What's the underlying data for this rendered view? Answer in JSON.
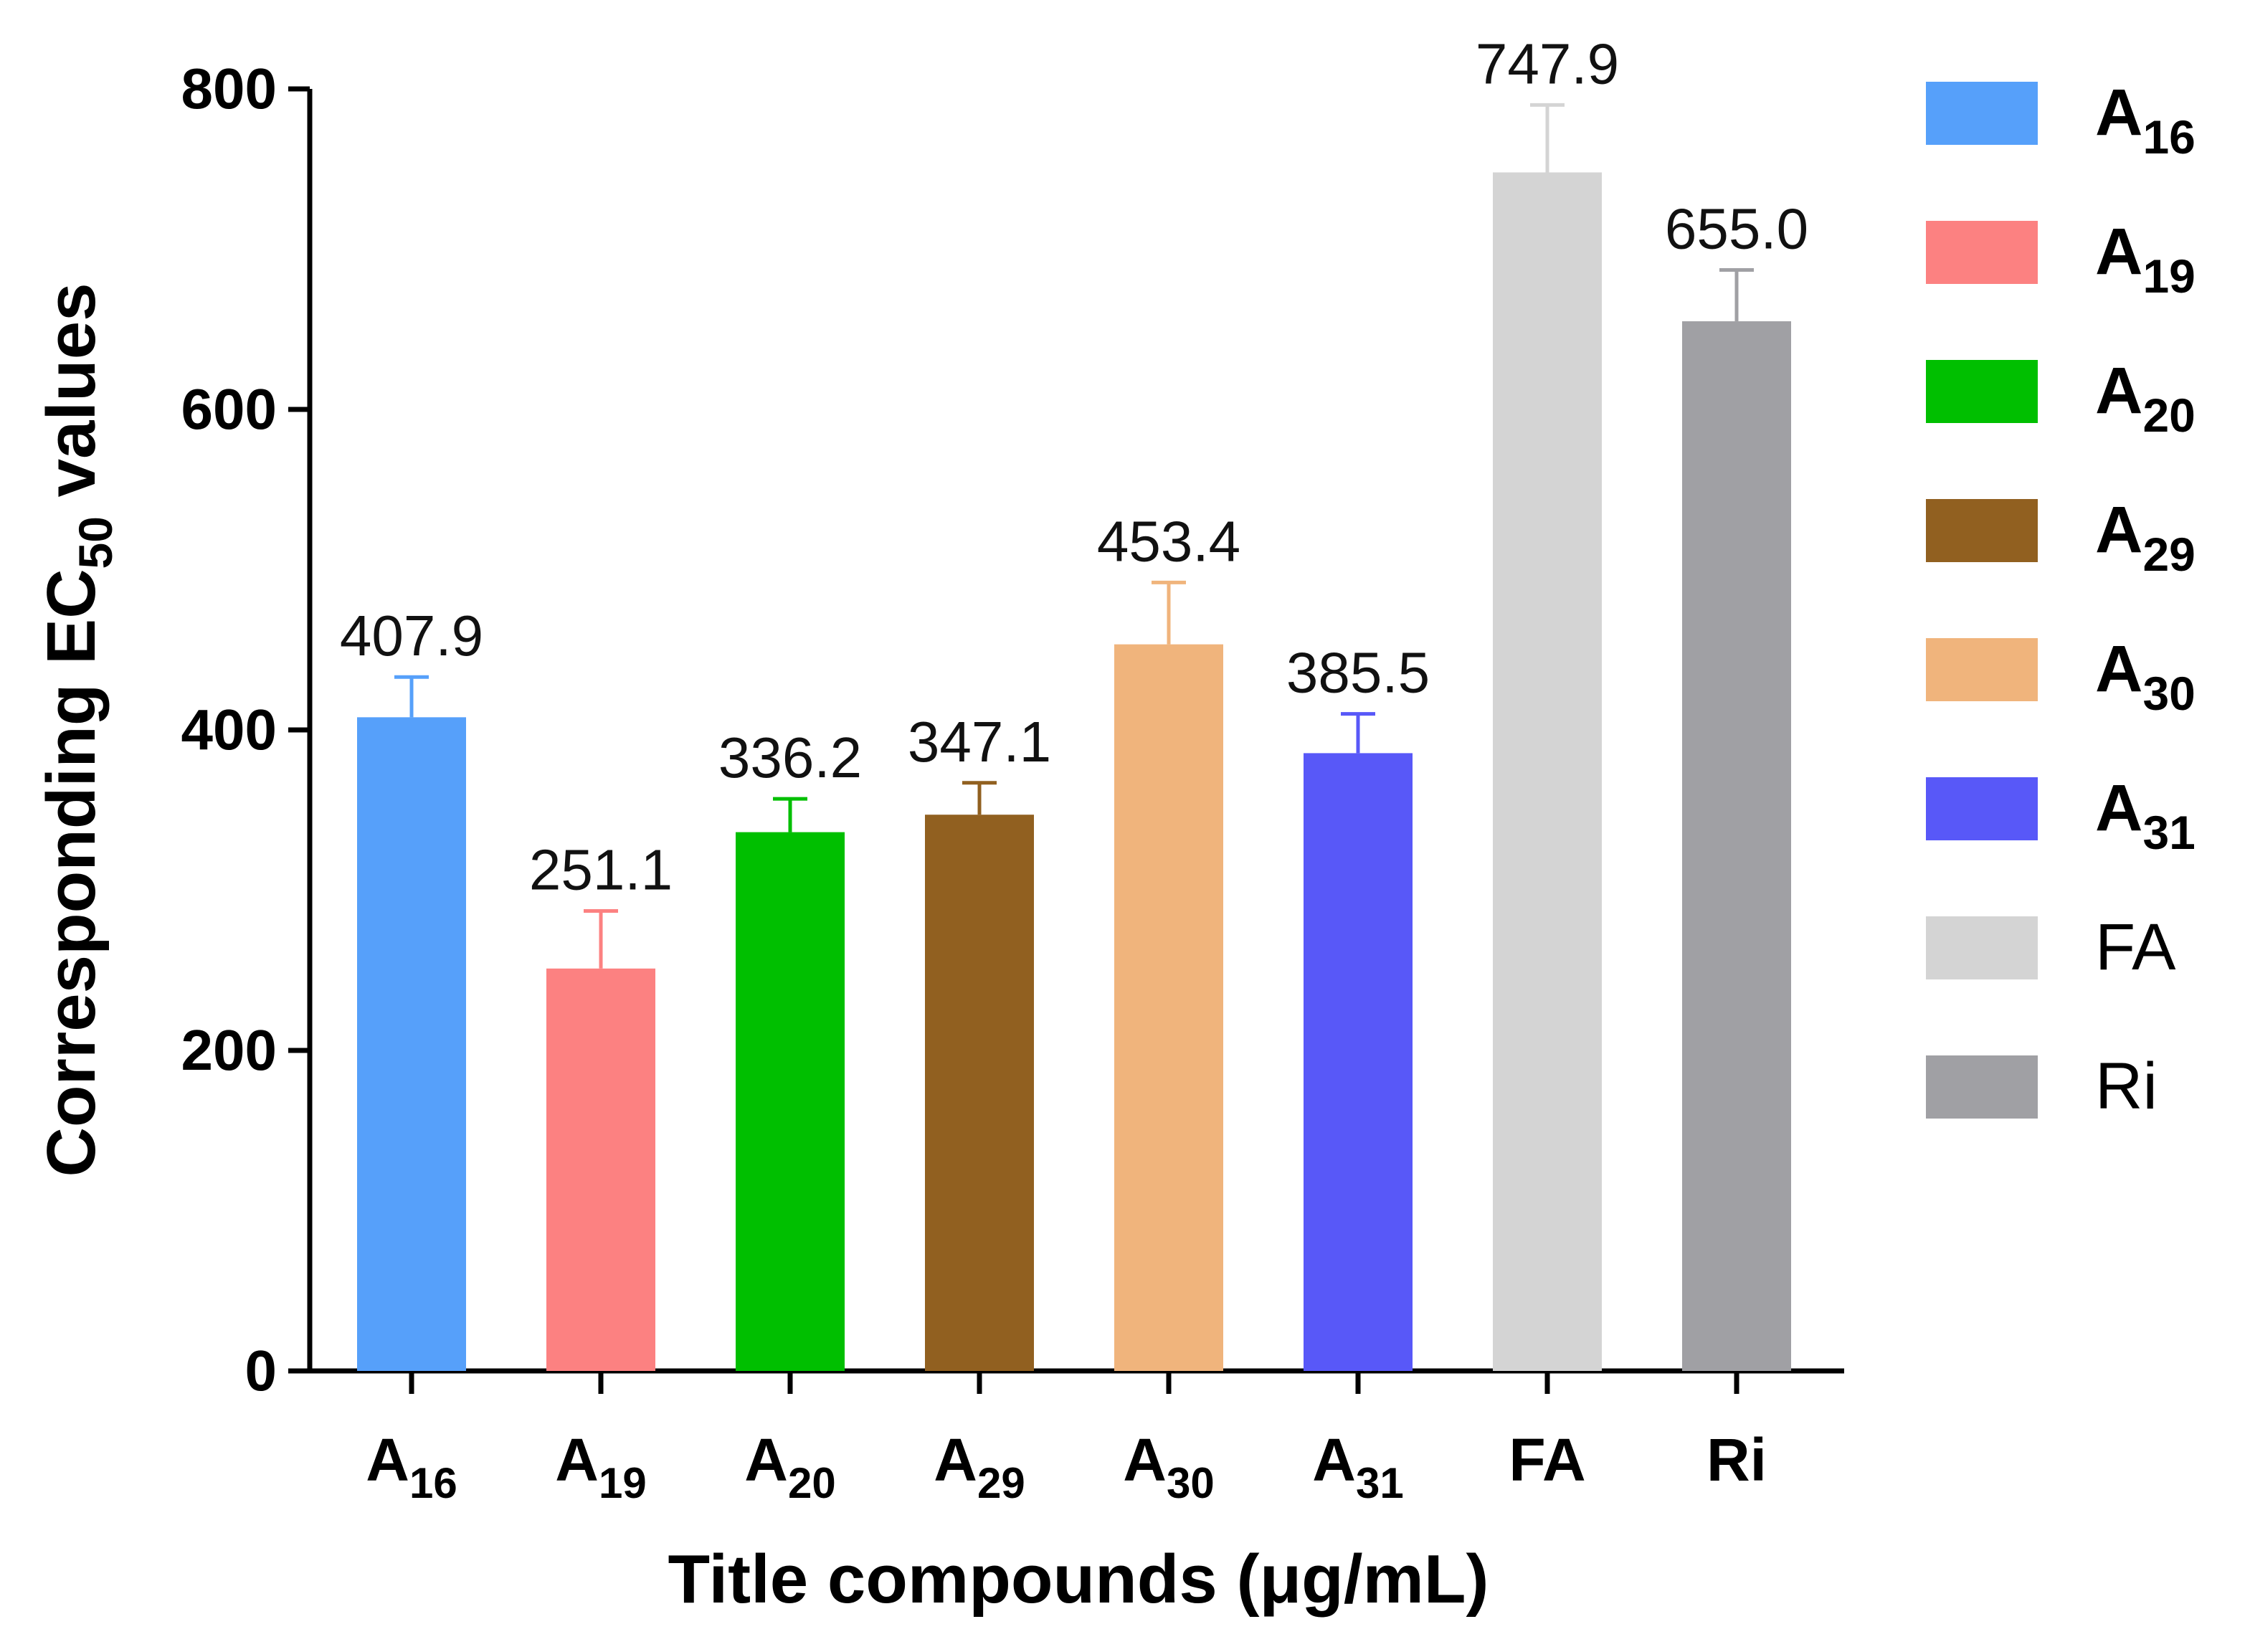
{
  "chart_data": {
    "type": "bar",
    "title": "",
    "xlabel": "Title compounds (μg/mL)",
    "ylabel": {
      "prefix": "Corresponding EC",
      "subscript": "50",
      "suffix": " values"
    },
    "ylim": [
      0,
      800
    ],
    "yticks": [
      0,
      200,
      400,
      600,
      800
    ],
    "grid": false,
    "legend_position": "right",
    "categories": [
      {
        "base": "A",
        "sub": "16"
      },
      {
        "base": "A",
        "sub": "19"
      },
      {
        "base": "A",
        "sub": "20"
      },
      {
        "base": "A",
        "sub": "29"
      },
      {
        "base": "A",
        "sub": "30"
      },
      {
        "base": "A",
        "sub": "31"
      },
      {
        "base": "FA",
        "sub": ""
      },
      {
        "base": "Ri",
        "sub": ""
      }
    ],
    "values": [
      407.9,
      251.1,
      336.2,
      347.1,
      453.4,
      385.5,
      747.9,
      655.0
    ],
    "value_labels": [
      "407.9",
      "251.1",
      "336.2",
      "347.1",
      "453.4",
      "385.5",
      "747.9",
      "655.0"
    ],
    "error_upper": [
      433,
      287,
      357,
      367,
      492,
      410,
      790,
      687
    ],
    "colors": [
      "#56A0FA",
      "#FC8181",
      "#00BF00",
      "#916020",
      "#F0B47C",
      "#5858F8",
      "#D4D4D4",
      "#A0A0A4"
    ],
    "legend": [
      {
        "base": "A",
        "sub": "16",
        "bold": true
      },
      {
        "base": "A",
        "sub": "19",
        "bold": true
      },
      {
        "base": "A",
        "sub": "20",
        "bold": true
      },
      {
        "base": "A",
        "sub": "29",
        "bold": true
      },
      {
        "base": "A",
        "sub": "30",
        "bold": true
      },
      {
        "base": "A",
        "sub": "31",
        "bold": true
      },
      {
        "base": "FA",
        "sub": "",
        "bold": false
      },
      {
        "base": "Ri",
        "sub": "",
        "bold": false
      }
    ]
  }
}
